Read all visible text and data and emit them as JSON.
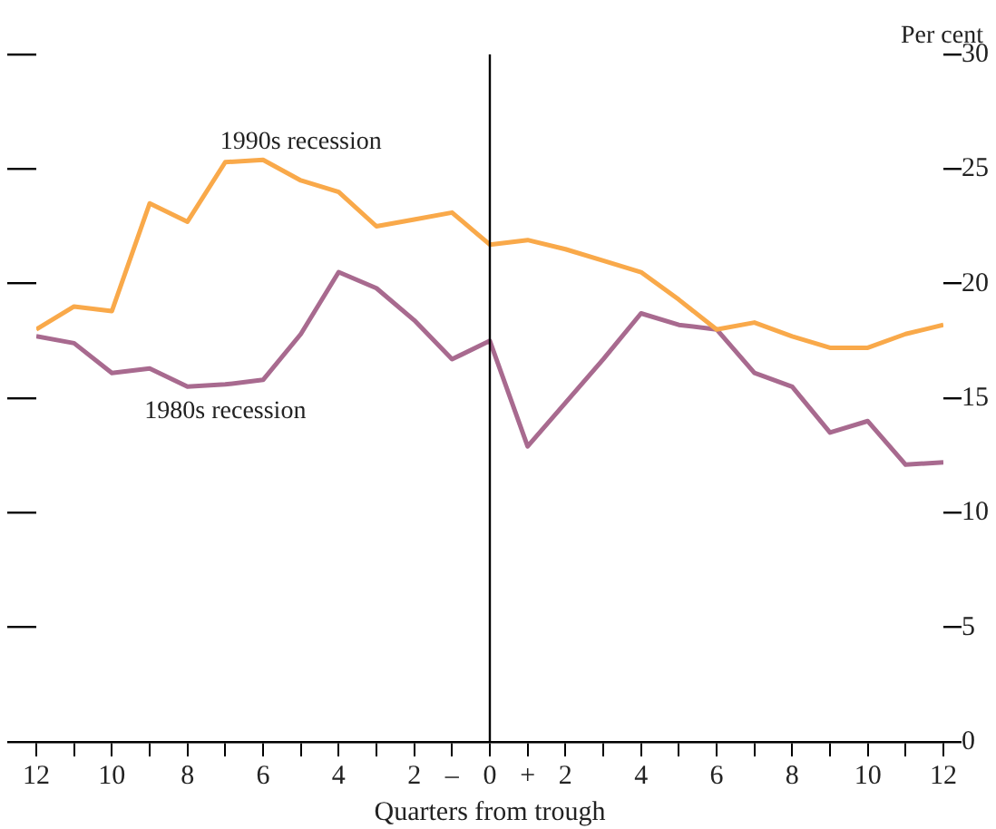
{
  "chart_data": {
    "type": "line",
    "xlabel": "Quarters from trough",
    "ylabel": "Per cent",
    "x": [
      -12,
      -11,
      -10,
      -9,
      -8,
      -7,
      -6,
      -5,
      -4,
      -3,
      -2,
      -1,
      0,
      1,
      2,
      3,
      4,
      5,
      6,
      7,
      8,
      9,
      10,
      11,
      12
    ],
    "series": [
      {
        "name": "1990s recession",
        "color": "#f9a94a",
        "values": [
          18.0,
          19.0,
          18.8,
          23.5,
          22.7,
          25.3,
          25.4,
          24.5,
          24.0,
          22.5,
          22.8,
          23.1,
          21.7,
          21.9,
          21.5,
          21.0,
          20.5,
          19.3,
          18.0,
          18.3,
          17.7,
          17.2,
          17.2,
          17.8,
          18.2
        ]
      },
      {
        "name": "1980s recession",
        "color": "#a86a8f",
        "values": [
          17.7,
          17.4,
          16.1,
          16.3,
          15.5,
          15.6,
          15.8,
          17.8,
          20.5,
          19.8,
          18.4,
          16.7,
          17.5,
          12.9,
          14.8,
          16.7,
          18.7,
          18.2,
          18.0,
          16.1,
          15.5,
          13.5,
          14.0,
          12.1,
          12.2
        ]
      }
    ],
    "xlim": [
      -12,
      12
    ],
    "xticks": [
      {
        "value": -12,
        "label": "12"
      },
      {
        "value": -11,
        "label": null
      },
      {
        "value": -10,
        "label": "10"
      },
      {
        "value": -9,
        "label": null
      },
      {
        "value": -8,
        "label": "8"
      },
      {
        "value": -7,
        "label": null
      },
      {
        "value": -6,
        "label": "6"
      },
      {
        "value": -5,
        "label": null
      },
      {
        "value": -4,
        "label": "4"
      },
      {
        "value": -3,
        "label": null
      },
      {
        "value": -2,
        "label": "2"
      },
      {
        "value": -1,
        "label": "–"
      },
      0,
      {
        "value": 1,
        "label": "+"
      },
      2,
      {
        "value": 3,
        "label": null
      },
      4,
      {
        "value": 5,
        "label": null
      },
      6,
      {
        "value": 7,
        "label": null
      },
      8,
      {
        "value": 9,
        "label": null
      },
      10,
      {
        "value": 11,
        "label": null
      },
      12
    ],
    "ylim": [
      0,
      30
    ],
    "yticks": [
      0,
      5,
      10,
      15,
      20,
      25,
      30
    ],
    "ref_lines": [
      {
        "axis": "x",
        "value": 0,
        "label": null,
        "color": "#000000"
      }
    ],
    "grid": false,
    "legend": false,
    "marker": "none",
    "line_style": "solid"
  }
}
